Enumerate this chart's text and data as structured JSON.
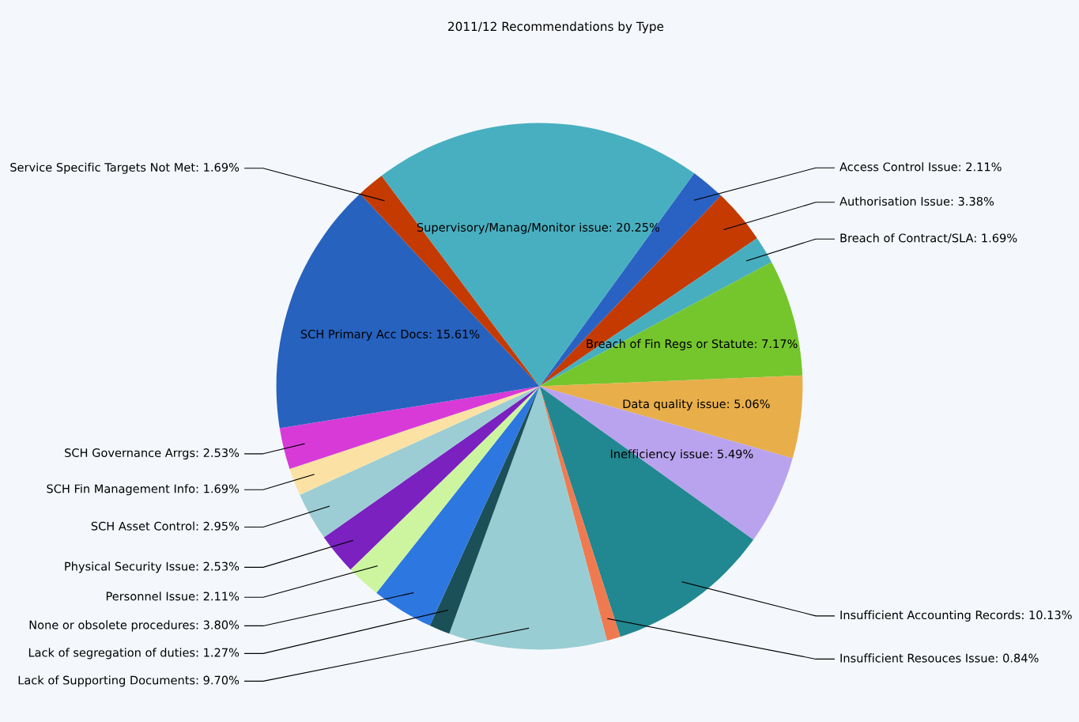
{
  "chart_data": {
    "type": "pie",
    "title": "2011/12 Recommendations by Type",
    "categories": [
      "Access Control Issue",
      "Authorisation Issue",
      "Breach of Contract/SLA",
      "Breach of Fin Regs or Statute",
      "Data quality issue",
      "Inefficiency issue",
      "Insufficient Accounting Records",
      "Insufficient Resouces Issue",
      "Lack of Supporting Documents",
      "Lack of segregation of duties",
      "None or obsolete procedures",
      "Personnel Issue",
      "Physical Security Issue",
      "SCH Asset Control",
      "SCH Fin Management Info",
      "SCH Governance Arrgs",
      "SCH Primary Acc Docs",
      "Service Specific Targets Not Met",
      "Supervisory/Manag/Monitor issue"
    ],
    "values": [
      2.11,
      3.38,
      1.69,
      7.17,
      5.06,
      5.49,
      10.13,
      0.84,
      9.7,
      1.27,
      3.8,
      2.11,
      2.53,
      2.95,
      1.69,
      2.53,
      15.61,
      1.69,
      20.25
    ],
    "value_labels": [
      "2.11%",
      "3.38%",
      "1.69%",
      "7.17%",
      "5.06%",
      "5.49%",
      "10.13%",
      "0.84%",
      "9.70%",
      "1.27%",
      "3.80%",
      "2.11%",
      "2.53%",
      "2.95%",
      "1.69%",
      "2.53%",
      "15.61%",
      "1.69%",
      "20.25%"
    ],
    "colors": [
      "#2a62c4",
      "#c43a00",
      "#47aebf",
      "#74c62c",
      "#e8ae4a",
      "#b9a3ee",
      "#218891",
      "#f07a50",
      "#99cdd4",
      "#1c5058",
      "#2d77e0",
      "#cdf5a0",
      "#7b21c0",
      "#9ccdd4",
      "#fbe2a4",
      "#d83ad8",
      "#2662be",
      "#c43a00",
      "#48afc0"
    ],
    "legend": false
  }
}
